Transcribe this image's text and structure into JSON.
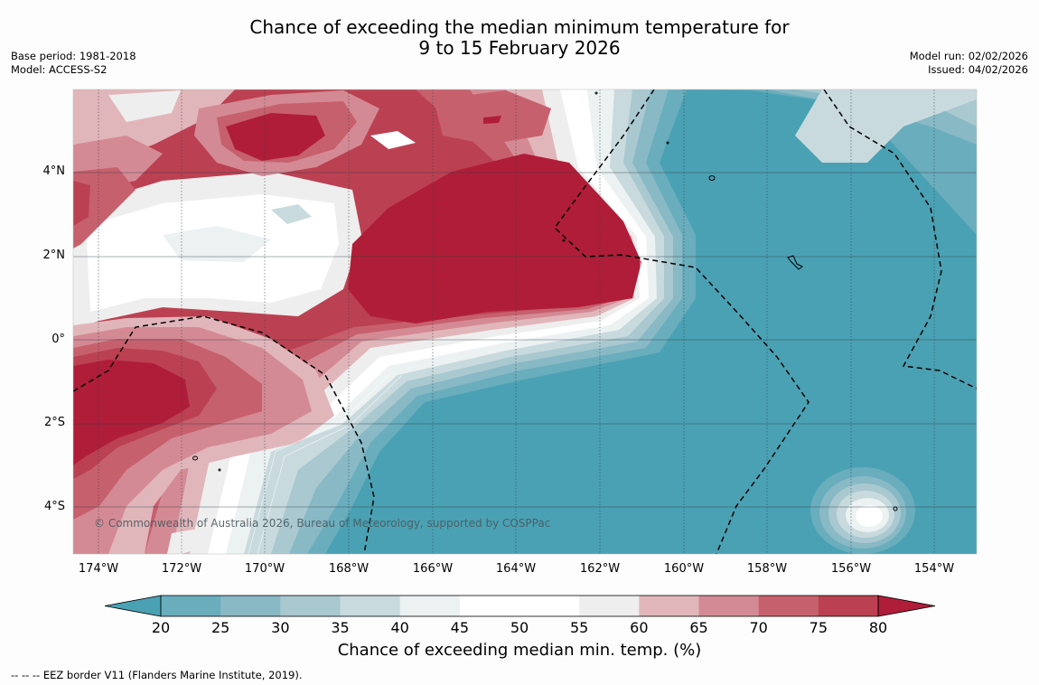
{
  "title": {
    "line1": "Chance of exceeding the median minimum temperature for",
    "line2": "9 to 15 February 2026"
  },
  "meta_left": {
    "base_period": "Base period: 1981-2018",
    "model": "Model: ACCESS-S2"
  },
  "meta_right": {
    "model_run": "Model run: 02/02/2026",
    "issued": "Issued: 04/02/2026"
  },
  "map": {
    "credit": "© Commonwealth of Australia 2026, Bureau of Meteorology, supported by COSPPac",
    "lat_labels": [
      "4°N",
      "2°N",
      "0°",
      "2°S",
      "4°S"
    ],
    "lon_labels": [
      "174°W",
      "172°W",
      "170°W",
      "168°W",
      "166°W",
      "164°W",
      "162°W",
      "160°W",
      "158°W",
      "156°W",
      "154°W"
    ]
  },
  "colorbar": {
    "ticks": [
      "20",
      "25",
      "30",
      "35",
      "40",
      "45",
      "50",
      "55",
      "60",
      "65",
      "70",
      "75",
      "80"
    ],
    "colors": [
      "#4aa1b3",
      "#6aadbd",
      "#88b9c5",
      "#a9c8d0",
      "#c9dade",
      "#ecf1f2",
      "#ffffff",
      "#ffffff",
      "#efeeee",
      "#e1b6bb",
      "#d48a94",
      "#c7606d",
      "#bb4152",
      "#b01d39"
    ],
    "title": "Chance of exceeding median min. temp. (%)"
  },
  "footnote": "--  --  -- EEZ border V11 (Flanders Marine Institute, 2019)."
}
